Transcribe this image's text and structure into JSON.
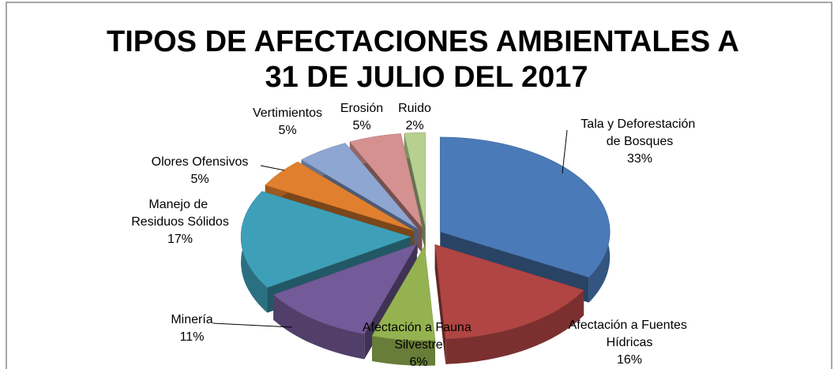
{
  "chart_data": {
    "type": "pie3d",
    "title": "TIPOS DE AFECTACIONES AMBIENTALES A 31 DE JULIO DEL 2017",
    "categories": [
      "Tala y Deforestación de Bosques",
      "Afectación a Fuentes Hídricas",
      "Afectación a Fauna Silvestre",
      "Minería",
      "Manejo de Residuos Sólidos",
      "Olores Ofensivos",
      "Vertimientos",
      "Erosión",
      "Ruido"
    ],
    "values": [
      33,
      16,
      6,
      11,
      17,
      5,
      5,
      5,
      2
    ],
    "value_labels": [
      "33%",
      "16%",
      "6%",
      "11%",
      "17%",
      "5%",
      "5%",
      "5%",
      "2%"
    ],
    "colors": [
      "#4a7ab8",
      "#b04543",
      "#94b350",
      "#735a98",
      "#3ea0b8",
      "#e07f2e",
      "#8ea6d2",
      "#d59190",
      "#b7cf8f"
    ]
  }
}
